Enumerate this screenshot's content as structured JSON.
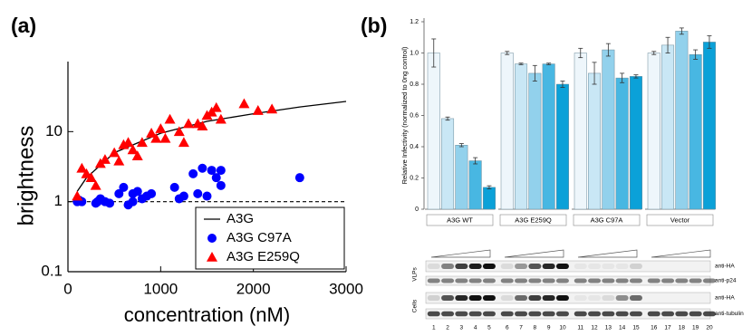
{
  "chart_data": [
    {
      "type": "scatter",
      "panel_label": "(a)",
      "x_label": "concentration (nM)",
      "y_label": "brightness",
      "xlim": [
        0,
        3000
      ],
      "xticks": [
        0,
        1000,
        2000,
        3000
      ],
      "ylim": [
        0.1,
        100
      ],
      "yticks": [
        0.1,
        1,
        10
      ],
      "y_scale": "log",
      "reference_line": 1,
      "legend": "lower right",
      "series": [
        {
          "name": "A3G",
          "style": "line",
          "color": "#000000",
          "x": [
            100,
            200,
            500,
            1000,
            1500,
            2000,
            2500,
            3000
          ],
          "values": [
            1.4,
            2.2,
            5,
            9.5,
            14,
            18,
            22.5,
            27
          ]
        },
        {
          "name": "A3G C97A",
          "style": "circle",
          "color": "#0000ff",
          "x": [
            100,
            120,
            150,
            300,
            320,
            350,
            400,
            450,
            550,
            600,
            650,
            700,
            700,
            750,
            800,
            850,
            900,
            1150,
            1200,
            1250,
            1350,
            1400,
            1450,
            1500,
            1550,
            1600,
            1650,
            1650,
            2500
          ],
          "values": [
            1.0,
            1.05,
            1.0,
            0.95,
            1.0,
            1.1,
            1.0,
            0.95,
            1.3,
            1.6,
            0.9,
            1.0,
            1.3,
            1.4,
            1.1,
            1.2,
            1.3,
            1.6,
            1.1,
            1.2,
            2.5,
            1.3,
            3.0,
            1.2,
            2.8,
            2.2,
            2.8,
            1.7,
            2.2
          ]
        },
        {
          "name": "A3G E259Q",
          "style": "triangle",
          "color": "#ff0000",
          "x": [
            100,
            150,
            200,
            250,
            300,
            350,
            400,
            500,
            550,
            600,
            650,
            700,
            750,
            800,
            900,
            950,
            1000,
            1050,
            1100,
            1200,
            1250,
            1300,
            1400,
            1450,
            1500,
            1550,
            1600,
            1650,
            1900,
            2050,
            2200
          ],
          "values": [
            1.2,
            3.0,
            2.5,
            2.2,
            1.7,
            3.5,
            4.0,
            5.0,
            3.8,
            6.5,
            7,
            5.5,
            4.5,
            7,
            9.5,
            8,
            11,
            8,
            15,
            10,
            7,
            13,
            13,
            12,
            17,
            19,
            22,
            15,
            25,
            20,
            21
          ]
        }
      ]
    },
    {
      "type": "bar",
      "panel_label": "(b)",
      "y_label": "Relative Infectivity (normalized to 0ng control)",
      "categories": [
        "A3G WT",
        "A3G E259Q",
        "A3G C97A",
        "Vector"
      ],
      "ylim": [
        0,
        1.2
      ],
      "yticks": [
        0,
        0.2,
        0.4,
        0.6,
        0.8,
        {
          "value": 1,
          "label": "1.0"
        },
        1.2
      ],
      "series": [
        {
          "color": "#eef6fb",
          "values": [
            1.0,
            1.0,
            1.0,
            1.0
          ],
          "errors": [
            0.09,
            0.01,
            0.03,
            0.01
          ]
        },
        {
          "color": "#c9e7f5",
          "values": [
            0.58,
            0.93,
            0.87,
            1.05
          ],
          "errors": [
            0.01,
            0.005,
            0.07,
            0.05
          ]
        },
        {
          "color": "#92d1ec",
          "values": [
            0.41,
            0.87,
            1.02,
            1.14
          ],
          "errors": [
            0.01,
            0.05,
            0.04,
            0.02
          ]
        },
        {
          "color": "#48b7e2",
          "values": [
            0.31,
            0.93,
            0.84,
            0.99
          ],
          "errors": [
            0.02,
            0.005,
            0.03,
            0.03
          ]
        },
        {
          "color": "#0ba1d8",
          "values": [
            0.14,
            0.8,
            0.85,
            1.07
          ],
          "errors": [
            0.01,
            0.02,
            0.01,
            0.04
          ]
        }
      ]
    }
  ],
  "blot": {
    "group_labels": [
      "VLPs",
      "Cells"
    ],
    "row_labels": [
      "anti-HA",
      "anti-p24",
      "anti-HA",
      "anti-tubulin"
    ],
    "lanes": [
      1,
      2,
      3,
      4,
      5,
      6,
      7,
      8,
      9,
      10,
      11,
      12,
      13,
      14,
      15,
      16,
      17,
      18,
      19,
      20
    ]
  }
}
